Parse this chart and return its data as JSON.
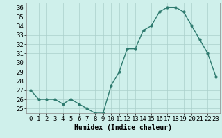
{
  "x": [
    0,
    1,
    2,
    3,
    4,
    5,
    6,
    7,
    8,
    9,
    10,
    11,
    12,
    13,
    14,
    15,
    16,
    17,
    18,
    19,
    20,
    21,
    22,
    23
  ],
  "y": [
    27,
    26,
    26,
    26,
    25.5,
    26,
    25.5,
    25,
    24.5,
    24.5,
    27.5,
    29,
    31.5,
    31.5,
    33.5,
    34,
    35.5,
    36,
    36,
    35.5,
    34,
    32.5,
    31,
    28.5
  ],
  "line_color": "#2d7a6e",
  "marker_color": "#2d7a6e",
  "bg_color": "#cff0eb",
  "grid_color": "#aacfca",
  "xlabel": "Humidex (Indice chaleur)",
  "ylim": [
    24.5,
    36.5
  ],
  "xlim": [
    -0.5,
    23.5
  ],
  "yticks": [
    25,
    26,
    27,
    28,
    29,
    30,
    31,
    32,
    33,
    34,
    35,
    36
  ],
  "xticks": [
    0,
    1,
    2,
    3,
    4,
    5,
    6,
    7,
    8,
    9,
    10,
    11,
    12,
    13,
    14,
    15,
    16,
    17,
    18,
    19,
    20,
    21,
    22,
    23
  ],
  "xlabel_fontsize": 7,
  "tick_fontsize": 6.5
}
